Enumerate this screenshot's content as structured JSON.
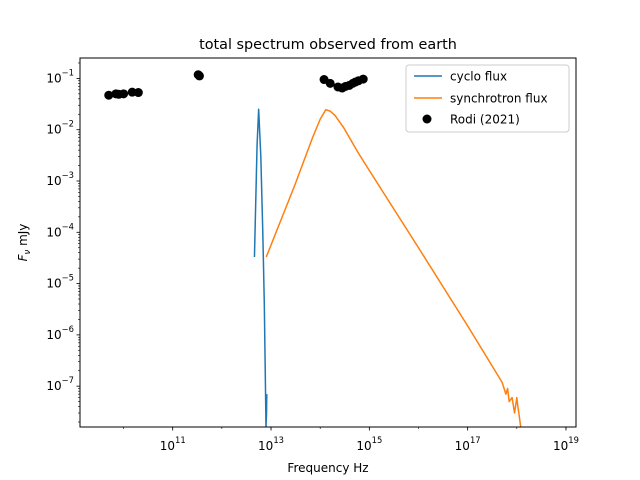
{
  "chart_data": {
    "type": "line",
    "title": "total spectrum observed from earth",
    "xlabel": "Frequency Hz",
    "ylabel_main": "F",
    "ylabel_sub": "ν",
    "ylabel_unit": " mJy",
    "x_scale": "log",
    "y_scale": "log",
    "xlim": [
      1300000000.0,
      1.6e+19
    ],
    "ylim": [
      1.6e-08,
      0.25
    ],
    "grid": false,
    "legend_position": "top-right",
    "x_ticks": [
      {
        "value": 100000000000.0,
        "base": "10",
        "exp": "11"
      },
      {
        "value": 10000000000000.0,
        "base": "10",
        "exp": "13"
      },
      {
        "value": 1000000000000000.0,
        "base": "10",
        "exp": "15"
      },
      {
        "value": 1e+17,
        "base": "10",
        "exp": "17"
      },
      {
        "value": 1e+19,
        "base": "10",
        "exp": "19"
      }
    ],
    "y_ticks": [
      {
        "value": 1e-07,
        "base": "10",
        "exp": "−7"
      },
      {
        "value": 1e-06,
        "base": "10",
        "exp": "−6"
      },
      {
        "value": 1e-05,
        "base": "10",
        "exp": "−5"
      },
      {
        "value": 0.0001,
        "base": "10",
        "exp": "−4"
      },
      {
        "value": 0.001,
        "base": "10",
        "exp": "−3"
      },
      {
        "value": 0.01,
        "base": "10",
        "exp": "−2"
      },
      {
        "value": 0.1,
        "base": "10",
        "exp": "−1"
      }
    ],
    "series": [
      {
        "name": "cyclo flux",
        "kind": "line",
        "color": "#1f77b4",
        "points": [
          [
            4600000000000.0,
            3.3e-05
          ],
          [
            5200000000000.0,
            0.005
          ],
          [
            5600000000000.0,
            0.025
          ],
          [
            6200000000000.0,
            0.003
          ],
          [
            6800000000000.0,
            0.0001
          ],
          [
            7300000000000.0,
            4e-06
          ],
          [
            7700000000000.0,
            1e-07
          ],
          [
            7900000000000.0,
            1.6e-08
          ],
          [
            8100000000000.0,
            3e-08
          ],
          [
            8200000000000.0,
            7e-08
          ]
        ]
      },
      {
        "name": "synchrotron flux",
        "kind": "line",
        "color": "#ff7f0e",
        "points": [
          [
            8000000000000.0,
            3.3e-05
          ],
          [
            30000000000000.0,
            0.0008
          ],
          [
            70000000000000.0,
            0.007
          ],
          [
            100000000000000.0,
            0.016
          ],
          [
            130000000000000.0,
            0.0245
          ],
          [
            160000000000000.0,
            0.023
          ],
          [
            200000000000000.0,
            0.019
          ],
          [
            300000000000000.0,
            0.011
          ],
          [
            600000000000000.0,
            0.0035
          ],
          [
            1000000000000000.0,
            0.0016
          ],
          [
            1e+16,
            5e-05
          ],
          [
            1e+17,
            1.5e-06
          ],
          [
            5e+17,
            1.2e-07
          ],
          [
            6e+17,
            7e-08
          ],
          [
            6.5e+17,
            9e-08
          ],
          [
            7e+17,
            5e-08
          ],
          [
            8e+17,
            6e-08
          ],
          [
            9e+17,
            3e-08
          ],
          [
            1e+18,
            6e-08
          ],
          [
            1.05e+18,
            4e-08
          ],
          [
            1.1e+18,
            3e-08
          ],
          [
            1.2e+18,
            1.6e-08
          ]
        ]
      },
      {
        "name": "Rodi (2021)",
        "kind": "scatter",
        "color": "#000000",
        "points": [
          [
            5000000000.0,
            0.047
          ],
          [
            7000000000.0,
            0.05
          ],
          [
            8000000000.0,
            0.049
          ],
          [
            10000000000.0,
            0.05
          ],
          [
            15000000000.0,
            0.054
          ],
          [
            20000000000.0,
            0.053
          ],
          [
            330000000000.0,
            0.118
          ],
          [
            350000000000.0,
            0.112
          ],
          [
            120000000000000.0,
            0.095
          ],
          [
            160000000000000.0,
            0.08
          ],
          [
            230000000000000.0,
            0.068
          ],
          [
            280000000000000.0,
            0.065
          ],
          [
            330000000000000.0,
            0.07
          ],
          [
            390000000000000.0,
            0.073
          ],
          [
            460000000000000.0,
            0.08
          ],
          [
            520000000000000.0,
            0.085
          ],
          [
            600000000000000.0,
            0.09
          ],
          [
            750000000000000.0,
            0.097
          ]
        ]
      }
    ]
  }
}
